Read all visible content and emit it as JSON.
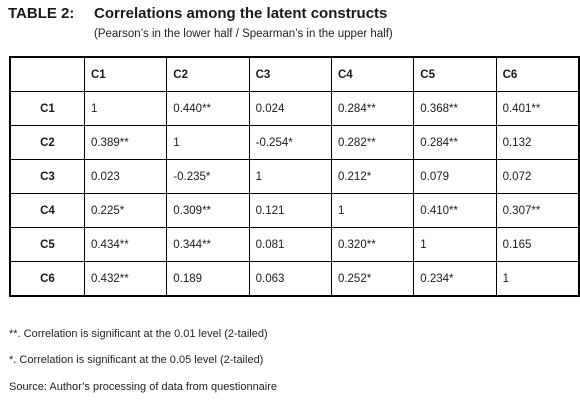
{
  "header": {
    "label": "TABLE 2:",
    "title": "Correlations among the latent constructs",
    "subtitle": "(Pearson’s in the lower half / Spearman’s in the upper half)"
  },
  "table": {
    "columns": [
      "C1",
      "C2",
      "C3",
      "C4",
      "C5",
      "C6"
    ],
    "rows": [
      {
        "label": "C1",
        "cells": [
          "1",
          "0.440**",
          "0.024",
          "0.284**",
          "0.368**",
          "0.401**"
        ]
      },
      {
        "label": "C2",
        "cells": [
          "0.389**",
          "1",
          "-0.254*",
          "0.282**",
          "0.284**",
          "0.132"
        ]
      },
      {
        "label": "C3",
        "cells": [
          "0.023",
          "-0.235*",
          "1",
          "0.212*",
          "0.079",
          "0.072"
        ]
      },
      {
        "label": "C4",
        "cells": [
          "0.225*",
          "0.309**",
          "0.121",
          "1",
          "0.410**",
          "0.307**"
        ]
      },
      {
        "label": "C5",
        "cells": [
          "0.434**",
          "0.344**",
          "0.081",
          "0.320**",
          "1",
          "0.165"
        ]
      },
      {
        "label": "C6",
        "cells": [
          "0.432**",
          "0.189",
          "0.063",
          "0.252*",
          "0.234*",
          "1"
        ]
      }
    ]
  },
  "footnotes": {
    "note1": "**. Correlation is significant at the 0.01 level (2-tailed)",
    "note2": "*. Correlation is significant at the 0.05 level (2-tailed)",
    "source": "Source: Author’s processing of data from questionnaire"
  }
}
